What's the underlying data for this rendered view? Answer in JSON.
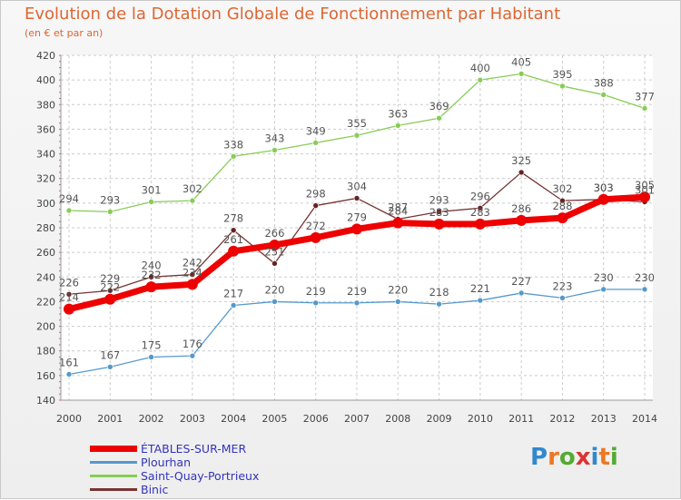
{
  "header": {
    "title": "Evolution de la Dotation Globale de Fonctionnement par Habitant",
    "subtitle": "(en € et par an)"
  },
  "logo": {
    "text": "Proxiti",
    "colors": [
      "#3388cc",
      "#ee7722",
      "#55aa33",
      "#dd3333",
      "#3388cc",
      "#ee7722",
      "#55aa33"
    ]
  },
  "chart_data": {
    "type": "line",
    "title": "Evolution de la Dotation Globale de Fonctionnement par Habitant",
    "subtitle": "(en € et par an)",
    "categories": [
      "2000",
      "2001",
      "2002",
      "2003",
      "2004",
      "2005",
      "2006",
      "2007",
      "2008",
      "2009",
      "2010",
      "2011",
      "2012",
      "2013",
      "2014"
    ],
    "ylim": [
      140,
      420
    ],
    "yticks": [
      140,
      160,
      180,
      200,
      220,
      240,
      260,
      280,
      300,
      320,
      340,
      360,
      380,
      400,
      420
    ],
    "grid": true,
    "legend_position": "bottom-left",
    "series": [
      {
        "name": "ÉTABLES-SUR-MER",
        "color": "#ee0000",
        "values": [
          214,
          222,
          232,
          234,
          261,
          266,
          272,
          279,
          284,
          283,
          283,
          286,
          288,
          303,
          305
        ]
      },
      {
        "name": "Plourhan",
        "color": "#5599cc",
        "values": [
          161,
          167,
          175,
          176,
          217,
          220,
          219,
          219,
          220,
          218,
          221,
          227,
          223,
          230,
          230
        ]
      },
      {
        "name": "Saint-Quay-Portrieux",
        "color": "#88cc55",
        "values": [
          294,
          293,
          301,
          302,
          338,
          343,
          349,
          355,
          363,
          369,
          400,
          405,
          395,
          388,
          377
        ]
      },
      {
        "name": "Binic",
        "color": "#773333",
        "values": [
          226,
          229,
          240,
          242,
          278,
          251,
          298,
          304,
          287,
          293,
          296,
          325,
          302,
          303,
          301
        ]
      }
    ]
  }
}
